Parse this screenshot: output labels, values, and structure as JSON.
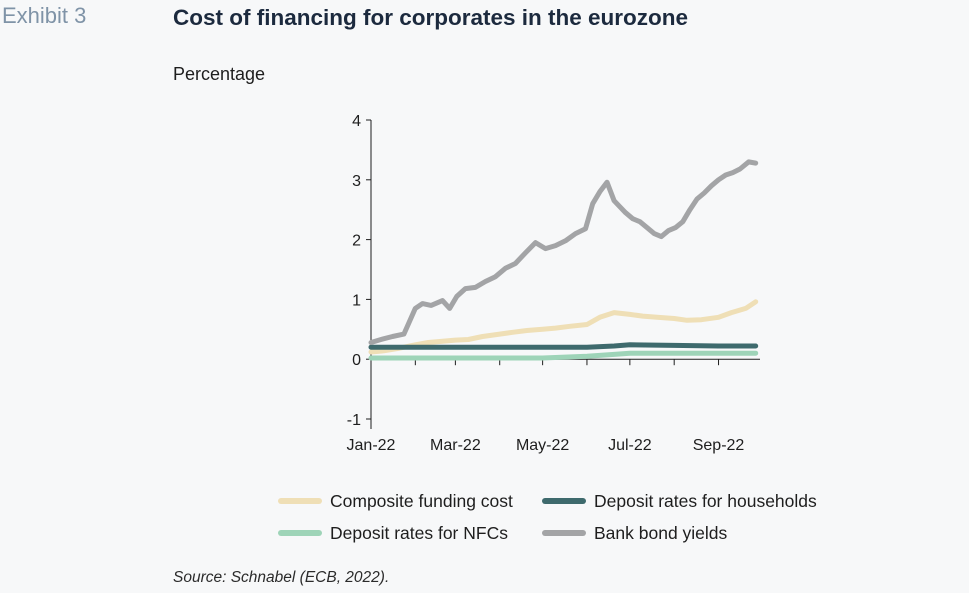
{
  "header": {
    "exhibit": "Exhibit 3",
    "title": "Cost of financing for corporates in the eurozone",
    "subtitle": "Percentage"
  },
  "source": "Source: Schnabel (ECB, 2022).",
  "chart_data": {
    "type": "line",
    "ylim": [
      -1,
      4
    ],
    "yticks": [
      -1,
      0,
      1,
      2,
      3,
      4
    ],
    "ytick_labels": [
      "-1",
      "0",
      "1",
      "2",
      "3",
      "4"
    ],
    "xtick_labels": [
      "Jan-22",
      "Mar-22",
      "May-22",
      "Jul-22",
      "Sep-22"
    ],
    "xtick_days": [
      0,
      59,
      120,
      181,
      243
    ],
    "x_start": "2022-01-01",
    "x_end": "2022-09-30",
    "grid": false,
    "legend_position": "bottom",
    "series": [
      {
        "name": "Composite funding cost",
        "color": "#efdfb6",
        "dates": [
          "2022-01-01",
          "2022-01-10",
          "2022-01-20",
          "2022-02-01",
          "2022-02-10",
          "2022-02-20",
          "2022-03-01",
          "2022-03-10",
          "2022-03-20",
          "2022-04-01",
          "2022-04-10",
          "2022-04-20",
          "2022-05-01",
          "2022-05-10",
          "2022-05-20",
          "2022-06-01",
          "2022-06-10",
          "2022-06-20",
          "2022-07-01",
          "2022-07-10",
          "2022-07-20",
          "2022-08-01",
          "2022-08-10",
          "2022-08-20",
          "2022-09-01",
          "2022-09-10",
          "2022-09-20",
          "2022-09-27"
        ],
        "values": [
          0.12,
          0.14,
          0.18,
          0.24,
          0.28,
          0.3,
          0.32,
          0.33,
          0.38,
          0.42,
          0.45,
          0.48,
          0.5,
          0.52,
          0.55,
          0.58,
          0.7,
          0.78,
          0.75,
          0.72,
          0.7,
          0.68,
          0.65,
          0.66,
          0.7,
          0.78,
          0.85,
          0.96
        ]
      },
      {
        "name": "Deposit rates for households",
        "color": "#3e6a6d",
        "dates": [
          "2022-01-01",
          "2022-02-01",
          "2022-03-01",
          "2022-04-01",
          "2022-05-01",
          "2022-06-01",
          "2022-06-20",
          "2022-07-01",
          "2022-08-01",
          "2022-09-01",
          "2022-09-27"
        ],
        "values": [
          0.2,
          0.2,
          0.2,
          0.2,
          0.2,
          0.2,
          0.22,
          0.24,
          0.23,
          0.22,
          0.22
        ]
      },
      {
        "name": "Deposit rates for NFCs",
        "color": "#9ed4b8",
        "dates": [
          "2022-01-01",
          "2022-02-01",
          "2022-03-01",
          "2022-04-01",
          "2022-05-01",
          "2022-06-01",
          "2022-06-20",
          "2022-07-01",
          "2022-08-01",
          "2022-09-01",
          "2022-09-27"
        ],
        "values": [
          0.02,
          0.02,
          0.02,
          0.02,
          0.02,
          0.05,
          0.08,
          0.1,
          0.1,
          0.1,
          0.1
        ]
      },
      {
        "name": "Bank bond yields",
        "color": "#a3a4a6",
        "dates": [
          "2022-01-01",
          "2022-01-08",
          "2022-01-16",
          "2022-01-24",
          "2022-02-01",
          "2022-02-06",
          "2022-02-12",
          "2022-02-20",
          "2022-02-25",
          "2022-03-02",
          "2022-03-08",
          "2022-03-15",
          "2022-03-22",
          "2022-03-29",
          "2022-04-05",
          "2022-04-12",
          "2022-04-19",
          "2022-04-26",
          "2022-05-03",
          "2022-05-10",
          "2022-05-17",
          "2022-05-24",
          "2022-05-31",
          "2022-06-05",
          "2022-06-10",
          "2022-06-15",
          "2022-06-20",
          "2022-06-24",
          "2022-06-28",
          "2022-07-03",
          "2022-07-08",
          "2022-07-13",
          "2022-07-18",
          "2022-07-23",
          "2022-07-28",
          "2022-08-02",
          "2022-08-07",
          "2022-08-12",
          "2022-08-17",
          "2022-08-22",
          "2022-08-27",
          "2022-09-01",
          "2022-09-06",
          "2022-09-11",
          "2022-09-16",
          "2022-09-22",
          "2022-09-27"
        ],
        "values": [
          0.28,
          0.33,
          0.38,
          0.42,
          0.85,
          0.93,
          0.9,
          0.98,
          0.85,
          1.05,
          1.18,
          1.2,
          1.3,
          1.38,
          1.52,
          1.6,
          1.78,
          1.95,
          1.85,
          1.9,
          1.98,
          2.1,
          2.18,
          2.6,
          2.8,
          2.96,
          2.65,
          2.55,
          2.45,
          2.35,
          2.3,
          2.2,
          2.1,
          2.05,
          2.15,
          2.2,
          2.3,
          2.5,
          2.68,
          2.78,
          2.9,
          3.0,
          3.08,
          3.12,
          3.18,
          3.3,
          3.28
        ]
      }
    ]
  }
}
